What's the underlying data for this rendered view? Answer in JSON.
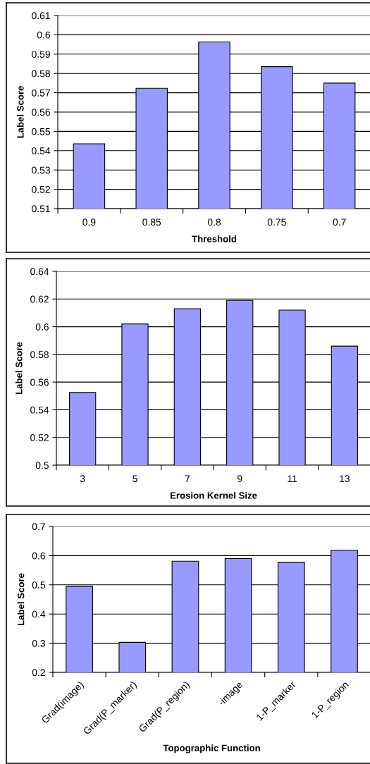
{
  "chart_data": [
    {
      "type": "bar",
      "xlabel": "Threshold",
      "ylabel": "Label Score",
      "categories": [
        "0.9",
        "0.85",
        "0.8",
        "0.75",
        "0.7"
      ],
      "values": [
        0.5436,
        0.5723,
        0.5963,
        0.5835,
        0.575
      ],
      "color": "#9999ff",
      "ylim": [
        0.51,
        0.61
      ],
      "yticks": [
        0.51,
        0.52,
        0.53,
        0.54,
        0.55,
        0.56,
        0.57,
        0.58,
        0.59,
        0.6,
        0.61
      ],
      "grid": "y"
    },
    {
      "type": "bar",
      "xlabel": "Erosion Kernel Size",
      "ylabel": "Label Score",
      "categories": [
        "3",
        "5",
        "7",
        "9",
        "11",
        "13"
      ],
      "values": [
        0.5525,
        0.602,
        0.613,
        0.619,
        0.612,
        0.586
      ],
      "color": "#9999ff",
      "ylim": [
        0.5,
        0.64
      ],
      "yticks": [
        0.5,
        0.52,
        0.54,
        0.56,
        0.58,
        0.6,
        0.62,
        0.64
      ],
      "grid": "y"
    },
    {
      "type": "bar",
      "xlabel": "Topographic Function",
      "ylabel": "Label Score",
      "categories": [
        "Grad(image)",
        "Grad(P_marker)",
        "Grad(P_region)",
        "-image",
        "1-P_marker",
        "1-P_region"
      ],
      "values": [
        0.495,
        0.303,
        0.581,
        0.59,
        0.577,
        0.619
      ],
      "color": "#9999ff",
      "ylim": [
        0.2,
        0.7
      ],
      "yticks": [
        0.2,
        0.3,
        0.4,
        0.5,
        0.6,
        0.7
      ],
      "grid": "y"
    }
  ]
}
